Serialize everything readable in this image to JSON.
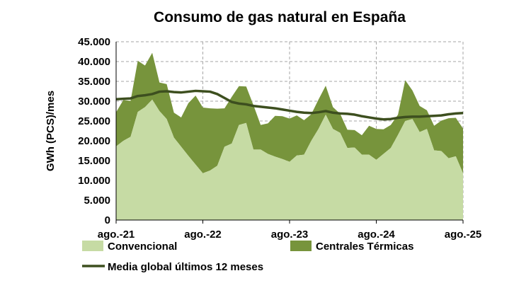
{
  "chart_data": {
    "type": "area",
    "title": "Consumo de gas natural en España",
    "ylabel": "GWh (PCS)/mes",
    "xlabel": "",
    "ylim": [
      0,
      45000
    ],
    "yticks": [
      "0",
      "5.000",
      "10.000",
      "15.000",
      "20.000",
      "25.000",
      "30.000",
      "35.000",
      "40.000",
      "45.000"
    ],
    "ytick_values": [
      0,
      5000,
      10000,
      15000,
      20000,
      25000,
      30000,
      35000,
      40000,
      45000
    ],
    "xticks": [
      "ago.-21",
      "ago.-22",
      "ago.-23",
      "ago.-24",
      "ago.-25"
    ],
    "xtick_index": [
      0,
      12,
      24,
      36,
      48
    ],
    "months": 49,
    "grid": "dashed",
    "colors": {
      "convencional": "#c6dba4",
      "centrales": "#77943c",
      "media": "#3d4f1f"
    },
    "series": [
      {
        "name": "Convencional",
        "kind": "stacked-area",
        "values": [
          18600,
          20000,
          21000,
          27300,
          28500,
          30400,
          27500,
          25500,
          20800,
          18500,
          16200,
          14000,
          11800,
          12500,
          13700,
          18500,
          19300,
          24000,
          24500,
          17800,
          17800,
          16700,
          16000,
          15400,
          14700,
          16300,
          16500,
          20000,
          23000,
          26600,
          23000,
          22000,
          18200,
          18300,
          16500,
          16500,
          15200,
          16700,
          18200,
          21500,
          25000,
          25500,
          22200,
          23000,
          17600,
          17400,
          15600,
          16100,
          11800
        ]
      },
      {
        "name": "Centrales Térmicas",
        "kind": "stacked-area",
        "values": [
          8600,
          10300,
          9100,
          12900,
          10500,
          11800,
          7200,
          8800,
          6300,
          7400,
          13300,
          17400,
          16600,
          15700,
          14400,
          9700,
          11800,
          9800,
          9200,
          11200,
          6200,
          7700,
          10300,
          10800,
          10900,
          10100,
          8700,
          6700,
          7400,
          7300,
          5500,
          4800,
          4600,
          4400,
          4900,
          7300,
          7800,
          6200,
          5800,
          5100,
          10300,
          7200,
          6600,
          4700,
          6200,
          7700,
          10100,
          9700,
          11300
        ]
      },
      {
        "name": "Media global últimos 12 meses",
        "kind": "line",
        "values": [
          30500,
          30600,
          30700,
          31300,
          31500,
          31800,
          32400,
          32500,
          32300,
          32200,
          32400,
          32600,
          32500,
          32400,
          31800,
          30800,
          29800,
          29400,
          29200,
          28800,
          28600,
          28400,
          28200,
          27900,
          27600,
          27300,
          27100,
          27000,
          27200,
          27500,
          27100,
          26900,
          26800,
          26600,
          26200,
          25900,
          25600,
          25400,
          25500,
          25800,
          26000,
          26100,
          26100,
          26200,
          26300,
          26400,
          26700,
          26900,
          27000
        ]
      }
    ],
    "legend": [
      {
        "label": "Convencional",
        "key": "convencional",
        "symbol": "box"
      },
      {
        "label": "Centrales Térmicas",
        "key": "centrales",
        "symbol": "box"
      },
      {
        "label": "Media global últimos 12 meses",
        "key": "media",
        "symbol": "line"
      }
    ]
  }
}
